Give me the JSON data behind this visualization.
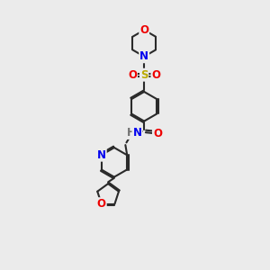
{
  "bg_color": "#ebebeb",
  "bond_color": "#2a2a2a",
  "bond_width": 1.5,
  "atom_colors": {
    "C": "#2a2a2a",
    "N": "#0000ee",
    "O": "#ee0000",
    "S": "#bbaa00",
    "H": "#707070"
  },
  "font_size": 8.5,
  "fig_size": [
    3.0,
    3.0
  ],
  "dpi": 100
}
